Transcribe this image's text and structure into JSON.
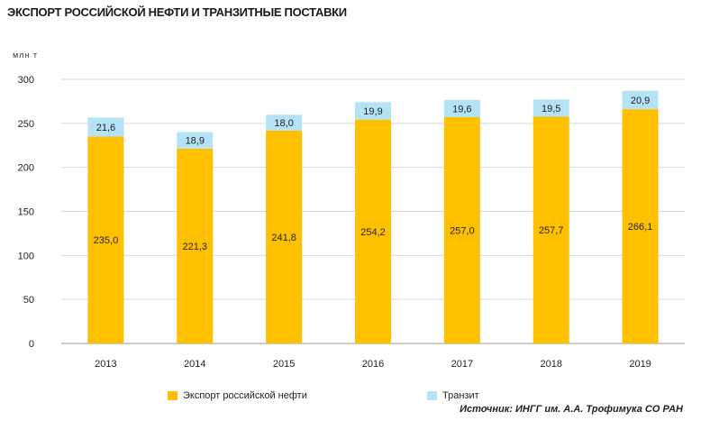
{
  "title": "ЭКСПОРТ РОССИЙСКОЙ НЕФТИ И ТРАНЗИТНЫЕ ПОСТАВКИ",
  "unit": "млн т",
  "source": "Источник: ИНГГ им. А.А. Трофимука СО РАН",
  "chart_data": {
    "type": "bar",
    "stacked": true,
    "categories": [
      "2013",
      "2014",
      "2015",
      "2016",
      "2017",
      "2018",
      "2019"
    ],
    "series": [
      {
        "name": "Экспорт российской нефти",
        "color": "#FFC000",
        "values": [
          235.0,
          221.3,
          241.8,
          254.2,
          257.0,
          257.7,
          266.1
        ],
        "labels": [
          "235,0",
          "221,3",
          "241,8",
          "254,2",
          "257,0",
          "257,7",
          "266,1"
        ]
      },
      {
        "name": "Транзит",
        "color": "#B5E3F5",
        "values": [
          21.6,
          18.9,
          18.0,
          19.9,
          19.6,
          19.5,
          20.9
        ],
        "labels": [
          "21,6",
          "18,9",
          "18,0",
          "19,9",
          "19,6",
          "19,5",
          "20,9"
        ]
      }
    ],
    "ylim": [
      0,
      300
    ],
    "yticks": [
      0,
      50,
      100,
      150,
      200,
      250,
      300
    ],
    "ylabel": "млн т",
    "grid": true,
    "legend_position": "bottom-left"
  }
}
